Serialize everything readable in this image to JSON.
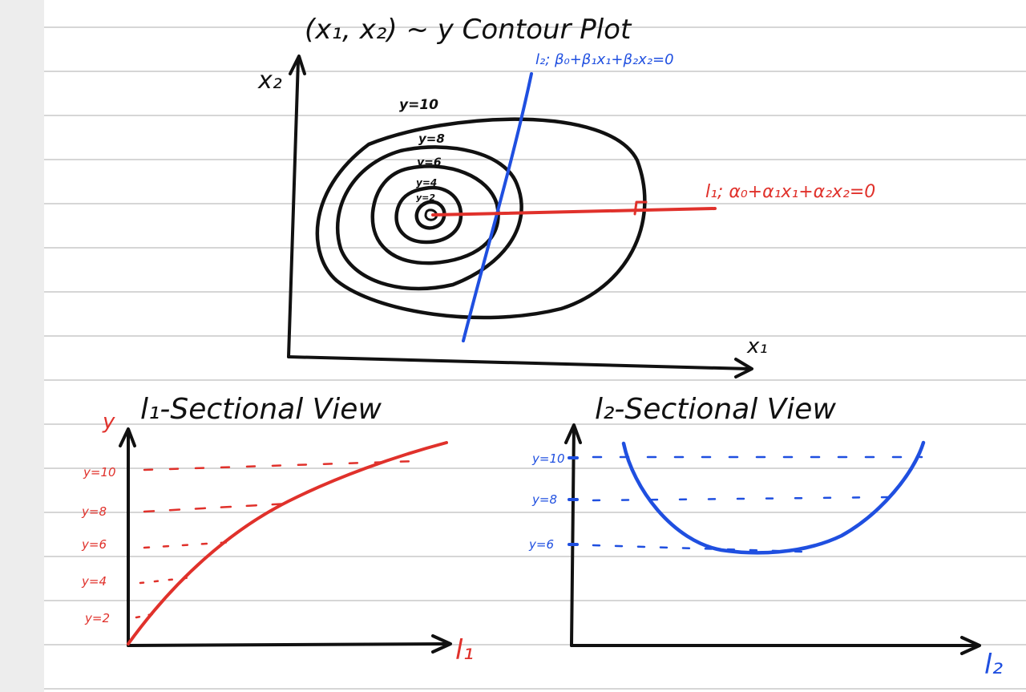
{
  "title": "(x₁, x₂) ~ y  Contour Plot",
  "top_plot": {
    "x_label": "x₁",
    "y_label": "x₂",
    "contour_labels": [
      "y=10",
      "y=8",
      "y=6",
      "y=4",
      "y=2"
    ],
    "line_l2": "l₂; β₀+β₁x₁+β₂x₂=0",
    "line_l1": "l₁; α₀+α₁x₁+α₂x₂=0"
  },
  "l1_view": {
    "title": "l₁-Sectional View",
    "y_label": "y",
    "x_label": "l₁",
    "levels": [
      "y=10",
      "y=8",
      "y=6",
      "y=4",
      "y=2"
    ]
  },
  "l2_view": {
    "title": "l₂-Sectional View",
    "x_label": "l₂",
    "levels": [
      "y=10",
      "y=8",
      "y=6"
    ]
  },
  "colors": {
    "ink": "#111111",
    "red": "#e0312b",
    "blue": "#1f4fe0",
    "rule": "#c9c9c9"
  }
}
